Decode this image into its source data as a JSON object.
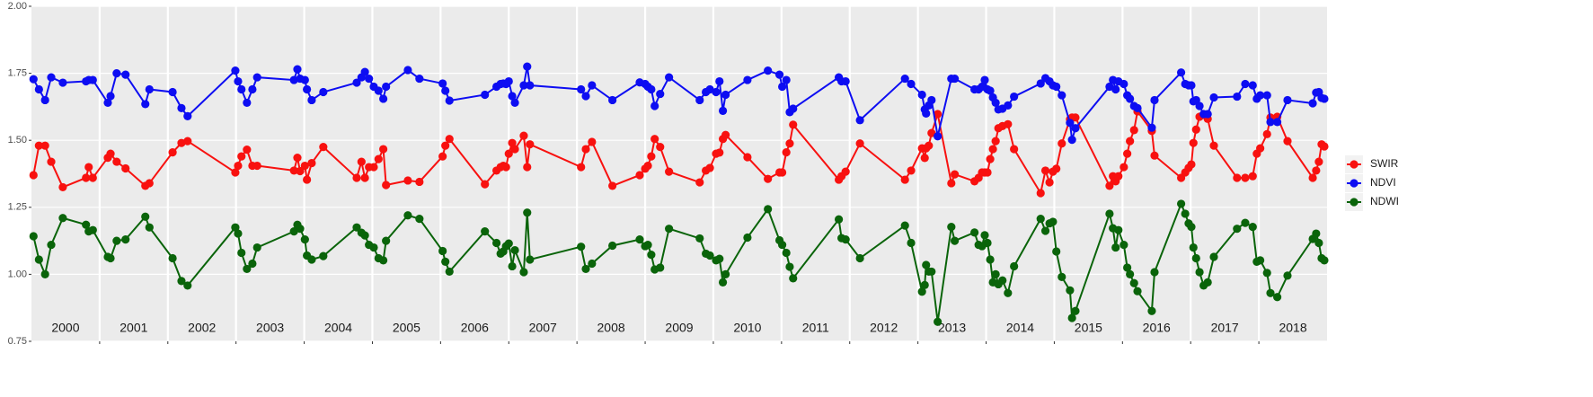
{
  "chart_data": {
    "type": "line",
    "x": [
      2000.03,
      2000.11,
      2000.2,
      2000.29,
      2000.46,
      2000.8,
      2000.84,
      2000.9,
      2001.12,
      2001.16,
      2001.25,
      2001.38,
      2001.67,
      2001.73,
      2002.07,
      2002.2,
      2002.29,
      2002.99,
      2003.03,
      2003.08,
      2003.16,
      2003.24,
      2003.31,
      2003.85,
      2003.9,
      2003.94,
      2004.01,
      2004.04,
      2004.11,
      2004.28,
      2004.77,
      2004.84,
      2004.89,
      2004.95,
      2005.02,
      2005.09,
      2005.16,
      2005.2,
      2005.52,
      2005.69,
      2006.03,
      2006.07,
      2006.13,
      2006.65,
      2006.82,
      2006.88,
      2006.92,
      2006.96,
      2007.0,
      2007.05,
      2007.09,
      2007.22,
      2007.27,
      2007.31,
      2008.06,
      2008.13,
      2008.22,
      2008.52,
      2008.92,
      2009.0,
      2009.04,
      2009.09,
      2009.14,
      2009.22,
      2009.35,
      2009.8,
      2009.89,
      2009.95,
      2010.04,
      2010.09,
      2010.14,
      2010.18,
      2010.5,
      2010.8,
      2010.97,
      2011.01,
      2011.07,
      2011.12,
      2011.17,
      2011.84,
      2011.88,
      2011.94,
      2012.15,
      2012.81,
      2012.9,
      2013.06,
      2013.1,
      2013.12,
      2013.16,
      2013.2,
      2013.29,
      2013.49,
      2013.54,
      2013.83,
      2013.89,
      2013.94,
      2013.98,
      2014.02,
      2014.06,
      2014.1,
      2014.14,
      2014.18,
      2014.24,
      2014.32,
      2014.41,
      2014.8,
      2014.87,
      2014.93,
      2014.98,
      2015.03,
      2015.11,
      2015.23,
      2015.26,
      2015.31,
      2015.81,
      2015.86,
      2015.9,
      2015.94,
      2016.02,
      2016.07,
      2016.11,
      2016.17,
      2016.22,
      2016.43,
      2016.47,
      2016.86,
      2016.92,
      2016.97,
      2017.01,
      2017.04,
      2017.08,
      2017.13,
      2017.19,
      2017.25,
      2017.34,
      2017.68,
      2017.8,
      2017.91,
      2017.97,
      2018.02,
      2018.12,
      2018.17,
      2018.27,
      2018.42,
      2018.79,
      2018.84,
      2018.88,
      2018.92,
      2018.96
    ],
    "series": [
      {
        "name": "SWIR",
        "color": "#f8110f",
        "values": [
          1.37,
          1.48,
          1.48,
          1.42,
          1.325,
          1.36,
          1.4,
          1.36,
          1.435,
          1.45,
          1.42,
          1.395,
          1.33,
          1.34,
          1.455,
          1.49,
          1.497,
          1.38,
          1.405,
          1.44,
          1.465,
          1.405,
          1.405,
          1.387,
          1.435,
          1.385,
          1.405,
          1.353,
          1.415,
          1.475,
          1.36,
          1.42,
          1.36,
          1.4,
          1.4,
          1.43,
          1.467,
          1.333,
          1.35,
          1.345,
          1.44,
          1.48,
          1.505,
          1.336,
          1.387,
          1.4,
          1.405,
          1.4,
          1.45,
          1.49,
          1.467,
          1.517,
          1.4,
          1.485,
          1.4,
          1.467,
          1.494,
          1.33,
          1.37,
          1.394,
          1.405,
          1.44,
          1.505,
          1.475,
          1.383,
          1.343,
          1.387,
          1.397,
          1.45,
          1.454,
          1.505,
          1.52,
          1.437,
          1.356,
          1.38,
          1.38,
          1.455,
          1.488,
          1.558,
          1.353,
          1.366,
          1.383,
          1.488,
          1.353,
          1.387,
          1.47,
          1.434,
          1.47,
          1.48,
          1.527,
          1.598,
          1.34,
          1.373,
          1.347,
          1.36,
          1.38,
          1.38,
          1.38,
          1.43,
          1.467,
          1.497,
          1.545,
          1.553,
          1.56,
          1.467,
          1.303,
          1.387,
          1.343,
          1.383,
          1.394,
          1.488,
          1.578,
          1.585,
          1.585,
          1.33,
          1.366,
          1.347,
          1.366,
          1.4,
          1.45,
          1.497,
          1.538,
          1.608,
          1.535,
          1.443,
          1.36,
          1.38,
          1.397,
          1.41,
          1.49,
          1.54,
          1.588,
          1.595,
          1.58,
          1.48,
          1.36,
          1.36,
          1.366,
          1.45,
          1.47,
          1.523,
          1.585,
          1.588,
          1.497,
          1.36,
          1.387,
          1.42,
          1.485,
          1.477
        ]
      },
      {
        "name": "NDVI",
        "color": "#0d0df2",
        "values": [
          1.728,
          1.69,
          1.65,
          1.735,
          1.715,
          1.72,
          1.725,
          1.725,
          1.64,
          1.665,
          1.75,
          1.745,
          1.635,
          1.69,
          1.68,
          1.62,
          1.59,
          1.76,
          1.72,
          1.69,
          1.64,
          1.69,
          1.735,
          1.725,
          1.765,
          1.73,
          1.725,
          1.69,
          1.65,
          1.68,
          1.715,
          1.735,
          1.755,
          1.73,
          1.7,
          1.685,
          1.655,
          1.7,
          1.762,
          1.73,
          1.712,
          1.685,
          1.648,
          1.67,
          1.7,
          1.71,
          1.712,
          1.71,
          1.72,
          1.665,
          1.64,
          1.705,
          1.775,
          1.705,
          1.69,
          1.665,
          1.705,
          1.65,
          1.716,
          1.71,
          1.7,
          1.69,
          1.628,
          1.673,
          1.735,
          1.65,
          1.68,
          1.69,
          1.68,
          1.72,
          1.61,
          1.67,
          1.725,
          1.76,
          1.745,
          1.7,
          1.725,
          1.605,
          1.618,
          1.735,
          1.72,
          1.72,
          1.575,
          1.73,
          1.71,
          1.67,
          1.615,
          1.6,
          1.63,
          1.65,
          1.515,
          1.73,
          1.73,
          1.69,
          1.69,
          1.7,
          1.725,
          1.69,
          1.685,
          1.66,
          1.64,
          1.615,
          1.618,
          1.63,
          1.663,
          1.712,
          1.732,
          1.72,
          1.705,
          1.7,
          1.668,
          1.565,
          1.502,
          1.545,
          1.7,
          1.725,
          1.69,
          1.72,
          1.71,
          1.668,
          1.655,
          1.628,
          1.62,
          1.547,
          1.65,
          1.753,
          1.71,
          1.705,
          1.705,
          1.645,
          1.65,
          1.628,
          1.598,
          1.598,
          1.66,
          1.663,
          1.71,
          1.705,
          1.655,
          1.668,
          1.668,
          1.568,
          1.568,
          1.65,
          1.638,
          1.678,
          1.68,
          1.658,
          1.655
        ]
      },
      {
        "name": "NDWI",
        "color": "#0a640a",
        "values": [
          1.142,
          1.055,
          1.0,
          1.11,
          1.21,
          1.185,
          1.16,
          1.165,
          1.065,
          1.06,
          1.125,
          1.13,
          1.215,
          1.175,
          1.06,
          0.975,
          0.958,
          1.175,
          1.152,
          1.08,
          1.02,
          1.04,
          1.1,
          1.16,
          1.185,
          1.17,
          1.13,
          1.07,
          1.055,
          1.068,
          1.175,
          1.155,
          1.145,
          1.11,
          1.1,
          1.06,
          1.052,
          1.125,
          1.22,
          1.207,
          1.087,
          1.047,
          1.01,
          1.16,
          1.117,
          1.077,
          1.085,
          1.105,
          1.115,
          1.03,
          1.09,
          1.008,
          1.23,
          1.055,
          1.103,
          1.02,
          1.04,
          1.107,
          1.13,
          1.105,
          1.11,
          1.073,
          1.018,
          1.025,
          1.17,
          1.134,
          1.077,
          1.07,
          1.052,
          1.058,
          0.97,
          1.0,
          1.137,
          1.243,
          1.127,
          1.11,
          1.08,
          1.028,
          0.985,
          1.205,
          1.135,
          1.13,
          1.06,
          1.182,
          1.117,
          0.935,
          0.96,
          1.035,
          1.01,
          1.01,
          0.823,
          1.177,
          1.125,
          1.156,
          1.11,
          1.105,
          1.146,
          1.117,
          1.055,
          0.97,
          1.0,
          0.963,
          0.977,
          0.93,
          1.03,
          1.207,
          1.162,
          1.19,
          1.196,
          1.085,
          0.99,
          0.94,
          0.837,
          0.863,
          1.226,
          1.172,
          1.1,
          1.165,
          1.11,
          1.025,
          1.0,
          0.967,
          0.937,
          0.863,
          1.008,
          1.263,
          1.226,
          1.19,
          1.177,
          1.1,
          1.06,
          1.008,
          0.958,
          0.97,
          1.065,
          1.17,
          1.192,
          1.177,
          1.047,
          1.052,
          1.005,
          0.93,
          0.915,
          0.995,
          1.132,
          1.152,
          1.117,
          1.06,
          1.052
        ]
      }
    ],
    "categories": [
      "2000",
      "2001",
      "2002",
      "2003",
      "2004",
      "2005",
      "2006",
      "2007",
      "2008",
      "2009",
      "2010",
      "2011",
      "2012",
      "2013",
      "2014",
      "2015",
      "2016",
      "2017",
      "2018"
    ],
    "xlim": [
      2000,
      2019
    ],
    "xticks": [
      2001,
      2002,
      2003,
      2004,
      2005,
      2006,
      2007,
      2008,
      2009,
      2010,
      2011,
      2012,
      2013,
      2014,
      2015,
      2016,
      2017,
      2018
    ],
    "ylim": [
      0.75,
      2.0
    ],
    "yticks": [
      {
        "value": 0.75,
        "label": "0.75"
      },
      {
        "value": 1.0,
        "label": "1.00"
      },
      {
        "value": 1.25,
        "label": "1.25"
      },
      {
        "value": 1.5,
        "label": "1.50"
      },
      {
        "value": 1.75,
        "label": "1.75"
      },
      {
        "value": 2.0,
        "label": "2.00"
      }
    ],
    "grid": true,
    "legend": "right"
  }
}
